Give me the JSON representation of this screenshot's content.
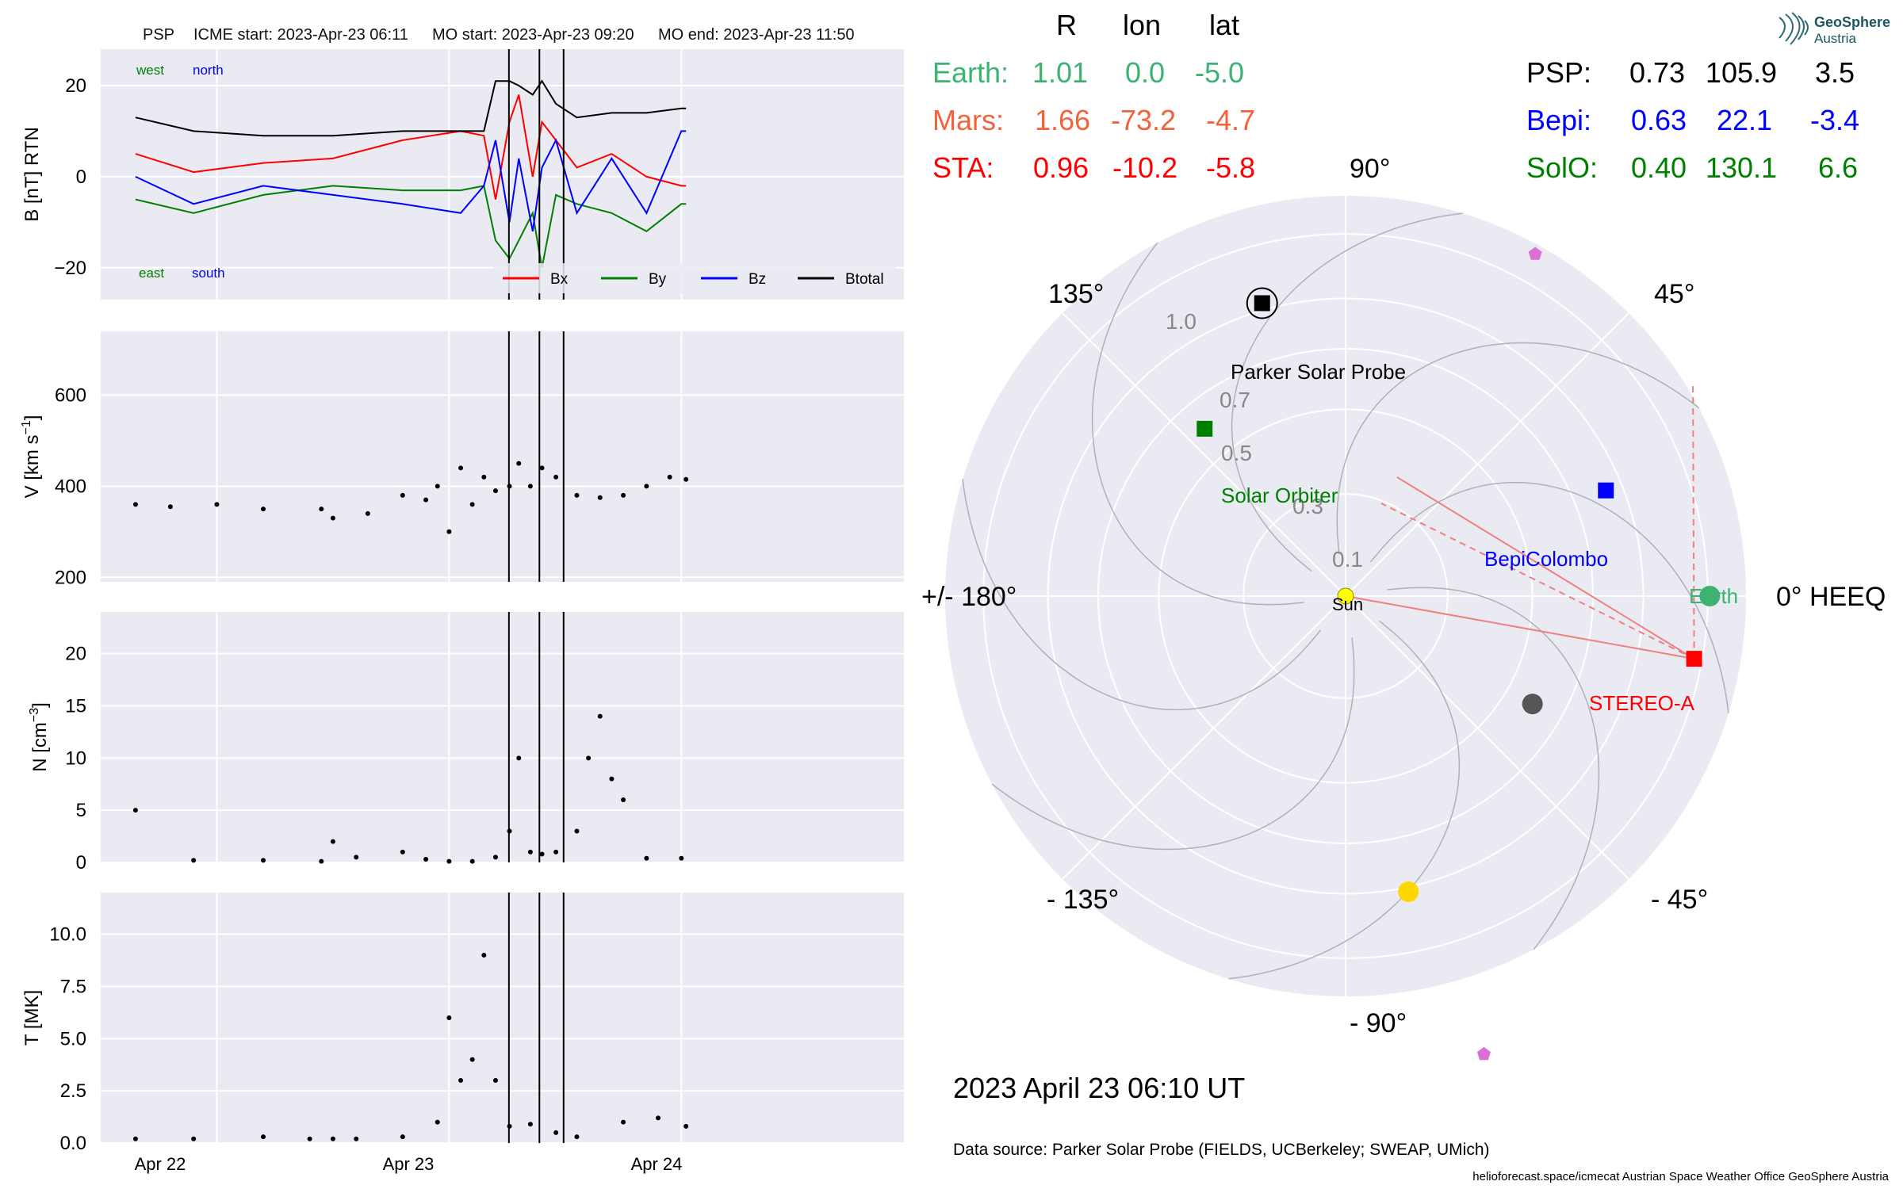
{
  "header": {
    "spacecraft": "PSP",
    "icme_start": "ICME start: 2023-Apr-23 06:11",
    "mo_start": "MO start: 2023-Apr-23 09:20",
    "mo_end": "MO end: 2023-Apr-23 11:50"
  },
  "panels": {
    "b": {
      "ylabel": "B [nT] RTN",
      "yticks": [
        20,
        0,
        -20
      ],
      "ytick_labels": [
        "20",
        "0",
        "−20"
      ],
      "annotations": {
        "west": "west",
        "north": "north",
        "east": "east",
        "south": "south"
      },
      "legend": [
        "Bx",
        "By",
        "Bz",
        "Btotal"
      ]
    },
    "v": {
      "ylabel": "V [km s",
      "ylabel_sup": "−1",
      "ylabel_end": "]",
      "yticks": [
        600,
        400,
        200
      ],
      "ytick_labels": [
        "600",
        "400",
        "200"
      ]
    },
    "n": {
      "ylabel": "N [cm",
      "ylabel_sup": "−3",
      "ylabel_end": "]",
      "yticks": [
        20,
        15,
        10,
        5,
        0
      ],
      "ytick_labels": [
        "20",
        "15",
        "10",
        "5",
        "0"
      ]
    },
    "t": {
      "ylabel": "T [MK]",
      "yticks": [
        10,
        7.5,
        5,
        2.5,
        0
      ],
      "ytick_labels": [
        "10.0",
        "7.5",
        "5.0",
        "2.5",
        "0.0"
      ]
    },
    "xtick_labels": [
      "Apr 22",
      "Apr 23",
      "Apr 24"
    ]
  },
  "positions_table": {
    "headers": [
      "R",
      "lon",
      "lat"
    ],
    "left_rows": [
      {
        "name": "Earth:",
        "r": "1.01",
        "lon": "0.0",
        "lat": "-5.0",
        "color": "#3cb371"
      },
      {
        "name": "Mars:",
        "r": "1.66",
        "lon": "-73.2",
        "lat": "-4.7",
        "color": "#f4623a"
      },
      {
        "name": "STA:",
        "r": "0.96",
        "lon": "-10.2",
        "lat": "-5.8",
        "color": "#ff0000"
      }
    ],
    "right_rows": [
      {
        "name": "PSP:",
        "r": "0.73",
        "lon": "105.9",
        "lat": "3.5",
        "color": "#000000"
      },
      {
        "name": "Bepi:",
        "r": "0.63",
        "lon": "22.1",
        "lat": "-3.4",
        "color": "#0000ff"
      },
      {
        "name": "SolO:",
        "r": "0.40",
        "lon": "130.1",
        "lat": "6.6",
        "color": "#008000"
      }
    ]
  },
  "polar": {
    "angle_labels": [
      "90°",
      "45°",
      "0° HEEQ",
      "- 45°",
      "- 90°",
      "- 135°",
      "+/- 180°",
      "135°"
    ],
    "radial_labels": [
      "0.1",
      "0.3",
      "0.5",
      "0.7",
      "1.0"
    ],
    "object_labels": {
      "psp": "Parker Solar Probe",
      "solo": "Solar Orbiter",
      "bepi": "BepiColombo",
      "earth": "Earth",
      "sta": "STEREO-A",
      "sun": "Sun"
    }
  },
  "timestamp": "2023 April 23  06:10 UT",
  "data_source": "Data source: Parker Solar Probe (FIELDS, UCBerkeley; SWEAP, UMich)",
  "footer": "helioforecast.space/icmecat   Austrian Space Weather Office   GeoSphere Austria",
  "logo": {
    "line1": "GeoSphere",
    "line2": "Austria"
  },
  "chart_data": [
    {
      "type": "line",
      "panel": "magnetic field",
      "x_unit": "days from 2023-Apr-22 00:00",
      "xlim": [
        "2023-04-21 12:00",
        "2023-04-24 23:00"
      ],
      "ylim": [
        -27,
        28
      ],
      "events": [
        "2023-04-23 06:11",
        "2023-04-23 09:20",
        "2023-04-23 11:50"
      ],
      "series": [
        {
          "name": "Bx",
          "color": "#ff0000",
          "x": [
            -0.35,
            -0.1,
            0.2,
            0.5,
            0.8,
            1.05,
            1.15,
            1.2,
            1.26,
            1.3,
            1.36,
            1.4,
            1.46,
            1.55,
            1.7,
            1.85,
            2.0,
            2.02
          ],
          "y": [
            5,
            1,
            3,
            4,
            8,
            10,
            9,
            -5,
            12,
            18,
            0,
            12,
            8,
            2,
            5,
            0,
            -2,
            -2
          ]
        },
        {
          "name": "By",
          "color": "#008000",
          "x": [
            -0.35,
            -0.1,
            0.2,
            0.5,
            0.8,
            1.05,
            1.15,
            1.2,
            1.26,
            1.3,
            1.36,
            1.4,
            1.46,
            1.55,
            1.7,
            1.85,
            2.0,
            2.02
          ],
          "y": [
            -5,
            -8,
            -4,
            -2,
            -3,
            -3,
            -2,
            -14,
            -18,
            -14,
            -8,
            -20,
            -4,
            -6,
            -8,
            -12,
            -6,
            -6
          ]
        },
        {
          "name": "Bz",
          "color": "#0000ff",
          "x": [
            -0.35,
            -0.1,
            0.2,
            0.5,
            0.8,
            1.05,
            1.15,
            1.2,
            1.26,
            1.3,
            1.36,
            1.4,
            1.46,
            1.55,
            1.7,
            1.85,
            2.0,
            2.02
          ],
          "y": [
            0,
            -6,
            -2,
            -4,
            -6,
            -8,
            -2,
            8,
            -10,
            4,
            -12,
            2,
            8,
            -8,
            4,
            -8,
            10,
            10
          ]
        },
        {
          "name": "Btotal",
          "color": "#000000",
          "x": [
            -0.35,
            -0.1,
            0.2,
            0.5,
            0.8,
            1.05,
            1.15,
            1.2,
            1.26,
            1.3,
            1.36,
            1.4,
            1.46,
            1.55,
            1.7,
            1.85,
            2.0,
            2.02
          ],
          "y": [
            13,
            10,
            9,
            9,
            10,
            10,
            10,
            21,
            21,
            20,
            18,
            21,
            16,
            13,
            14,
            14,
            15,
            15
          ]
        }
      ]
    },
    {
      "type": "scatter",
      "panel": "speed",
      "ylim": [
        190,
        740
      ],
      "x": [
        -0.35,
        -0.2,
        0.0,
        0.2,
        0.45,
        0.5,
        0.65,
        0.8,
        0.9,
        0.95,
        1.0,
        1.05,
        1.1,
        1.15,
        1.2,
        1.26,
        1.3,
        1.35,
        1.4,
        1.46,
        1.55,
        1.65,
        1.75,
        1.85,
        1.95,
        2.02
      ],
      "y": [
        360,
        355,
        360,
        350,
        350,
        330,
        340,
        380,
        370,
        400,
        300,
        440,
        360,
        420,
        390,
        400,
        450,
        400,
        440,
        420,
        380,
        375,
        380,
        400,
        420,
        415
      ]
    },
    {
      "type": "scatter",
      "panel": "density",
      "ylim": [
        0,
        24
      ],
      "x": [
        -0.35,
        -0.1,
        0.2,
        0.45,
        0.5,
        0.6,
        0.8,
        0.9,
        1.0,
        1.1,
        1.2,
        1.26,
        1.3,
        1.35,
        1.4,
        1.46,
        1.55,
        1.6,
        1.65,
        1.7,
        1.75,
        1.85,
        2.0
      ],
      "y": [
        5,
        0.2,
        0.2,
        0.1,
        2,
        0.5,
        1,
        0.3,
        0.1,
        0.1,
        0.5,
        3,
        10,
        1,
        0.8,
        1,
        3,
        10,
        14,
        8,
        6,
        0.4,
        0.4
      ]
    },
    {
      "type": "scatter",
      "panel": "temperature",
      "ylim": [
        0,
        12
      ],
      "x": [
        -0.35,
        -0.1,
        0.2,
        0.4,
        0.5,
        0.6,
        0.8,
        0.95,
        1.0,
        1.05,
        1.1,
        1.15,
        1.2,
        1.26,
        1.35,
        1.46,
        1.55,
        1.75,
        1.9,
        2.02
      ],
      "y": [
        0.2,
        0.2,
        0.3,
        0.2,
        0.2,
        0.2,
        0.3,
        1,
        6,
        3,
        4,
        9,
        3,
        0.8,
        0.9,
        0.5,
        0.3,
        1.0,
        1.2,
        0.8
      ]
    },
    {
      "type": "scatter",
      "panel": "polar position plot",
      "r_unit": "AU",
      "theta_unit": "deg HEEQ longitude",
      "points": [
        {
          "label": "Parker Solar Probe",
          "r": 0.73,
          "lon": 105.9,
          "color": "#000000",
          "marker": "square"
        },
        {
          "label": "BepiColombo",
          "r": 0.63,
          "lon": 22.1,
          "color": "#0000ff",
          "marker": "square"
        },
        {
          "label": "Solar Orbiter",
          "r": 0.4,
          "lon": 130.1,
          "color": "#008000",
          "marker": "square"
        },
        {
          "label": "Earth",
          "r": 1.01,
          "lon": 0.0,
          "color": "#3cb371",
          "marker": "circle"
        },
        {
          "label": "STEREO-A",
          "r": 0.96,
          "lon": -10.2,
          "color": "#ff0000",
          "marker": "square"
        },
        {
          "label": "Sun",
          "r": 0.0,
          "lon": 0,
          "color": "#ffff00",
          "marker": "circle"
        }
      ],
      "unlabeled_points": [
        {
          "r": 0.39,
          "lon": -30,
          "color": "#555555",
          "marker": "circle"
        },
        {
          "r": 0.72,
          "lon": -78,
          "color": "#ffd700",
          "marker": "circle"
        },
        {
          "r": 1.66,
          "lon": -73.2,
          "color": "#da70d6",
          "marker": "pentagon"
        },
        {
          "r": 1.15,
          "lon": 61,
          "color": "#da70d6",
          "marker": "pentagon"
        }
      ]
    }
  ]
}
